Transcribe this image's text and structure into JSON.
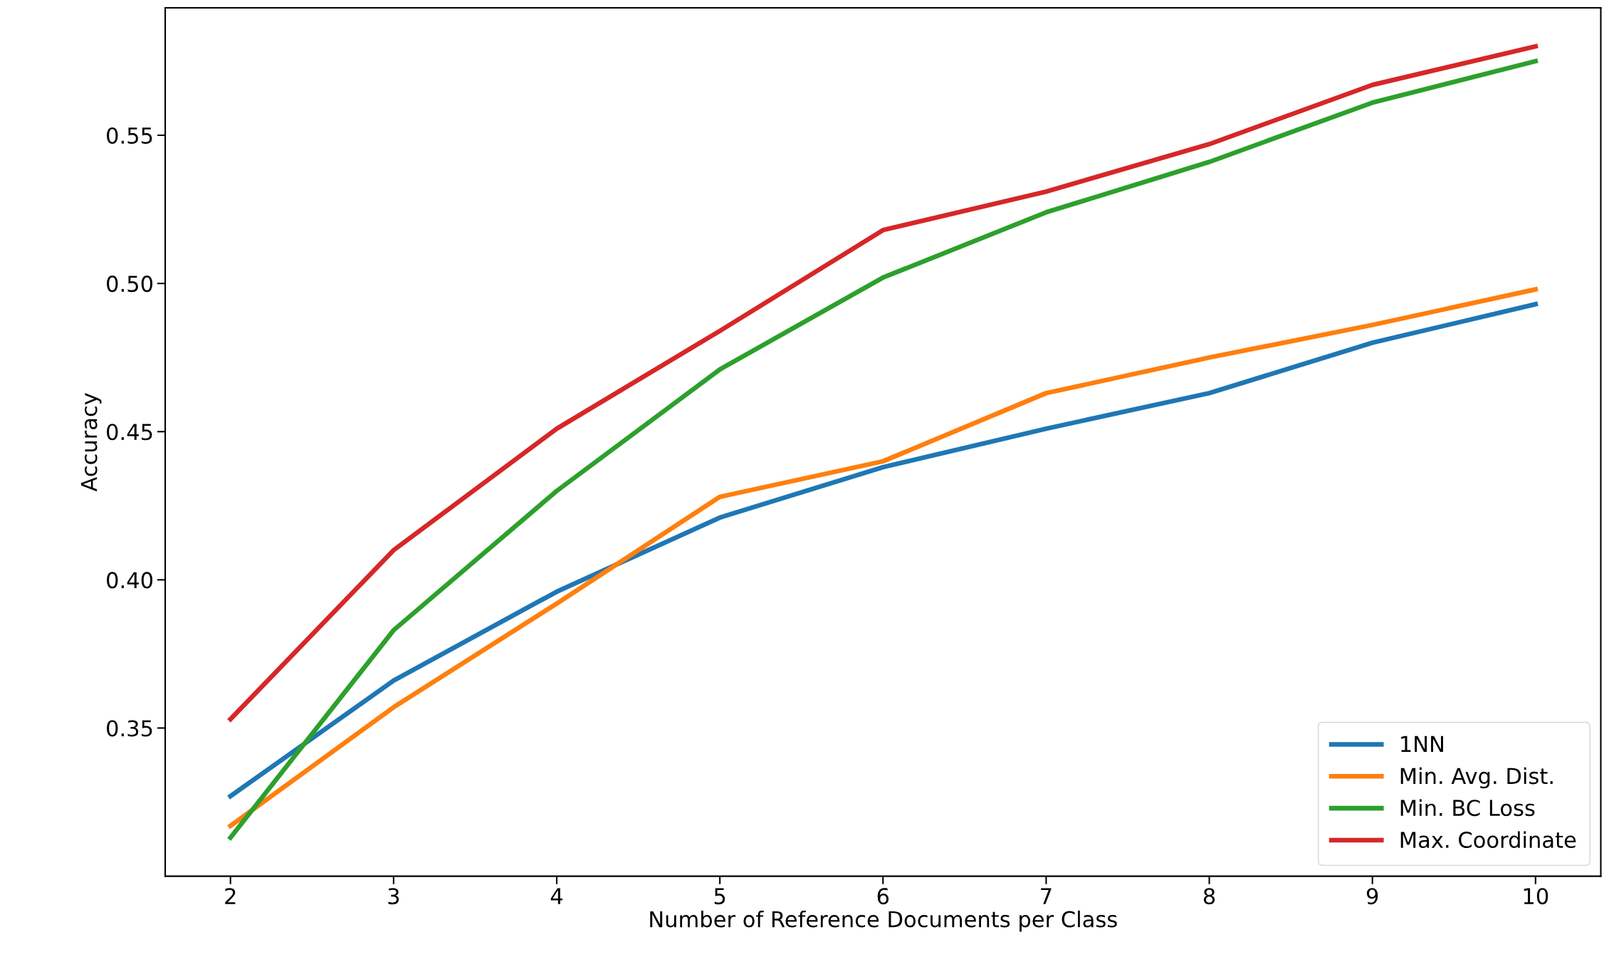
{
  "chart_data": {
    "type": "line",
    "xlabel": "Number of Reference Documents per Class",
    "ylabel": "Accuracy",
    "x": [
      2,
      3,
      4,
      5,
      6,
      7,
      8,
      9,
      10
    ],
    "series": [
      {
        "name": "1NN",
        "color": "#1f77b4",
        "values": [
          0.327,
          0.366,
          0.396,
          0.421,
          0.438,
          0.451,
          0.463,
          0.48,
          0.493
        ]
      },
      {
        "name": "Min. Avg. Dist.",
        "color": "#ff7f0e",
        "values": [
          0.317,
          0.357,
          0.392,
          0.428,
          0.44,
          0.463,
          0.475,
          0.486,
          0.498
        ]
      },
      {
        "name": "Min. BC Loss",
        "color": "#2ca02c",
        "values": [
          0.313,
          0.383,
          0.43,
          0.471,
          0.502,
          0.524,
          0.541,
          0.561,
          0.575
        ]
      },
      {
        "name": "Max. Coordinate",
        "color": "#d62728",
        "values": [
          0.353,
          0.41,
          0.451,
          0.484,
          0.518,
          0.531,
          0.547,
          0.567,
          0.58
        ]
      }
    ],
    "xlim": [
      1.6,
      10.4
    ],
    "ylim": [
      0.3,
      0.593
    ],
    "xticks": [
      2,
      3,
      4,
      5,
      6,
      7,
      8,
      9,
      10
    ],
    "yticks": [
      {
        "value": 0.35,
        "label": "0.35"
      },
      {
        "value": 0.4,
        "label": "0.40"
      },
      {
        "value": 0.45,
        "label": "0.45"
      },
      {
        "value": 0.5,
        "label": "0.50"
      },
      {
        "value": 0.55,
        "label": "0.55"
      }
    ],
    "legend": "lower right",
    "grid": false,
    "line_style": "solid",
    "marker": "none"
  }
}
